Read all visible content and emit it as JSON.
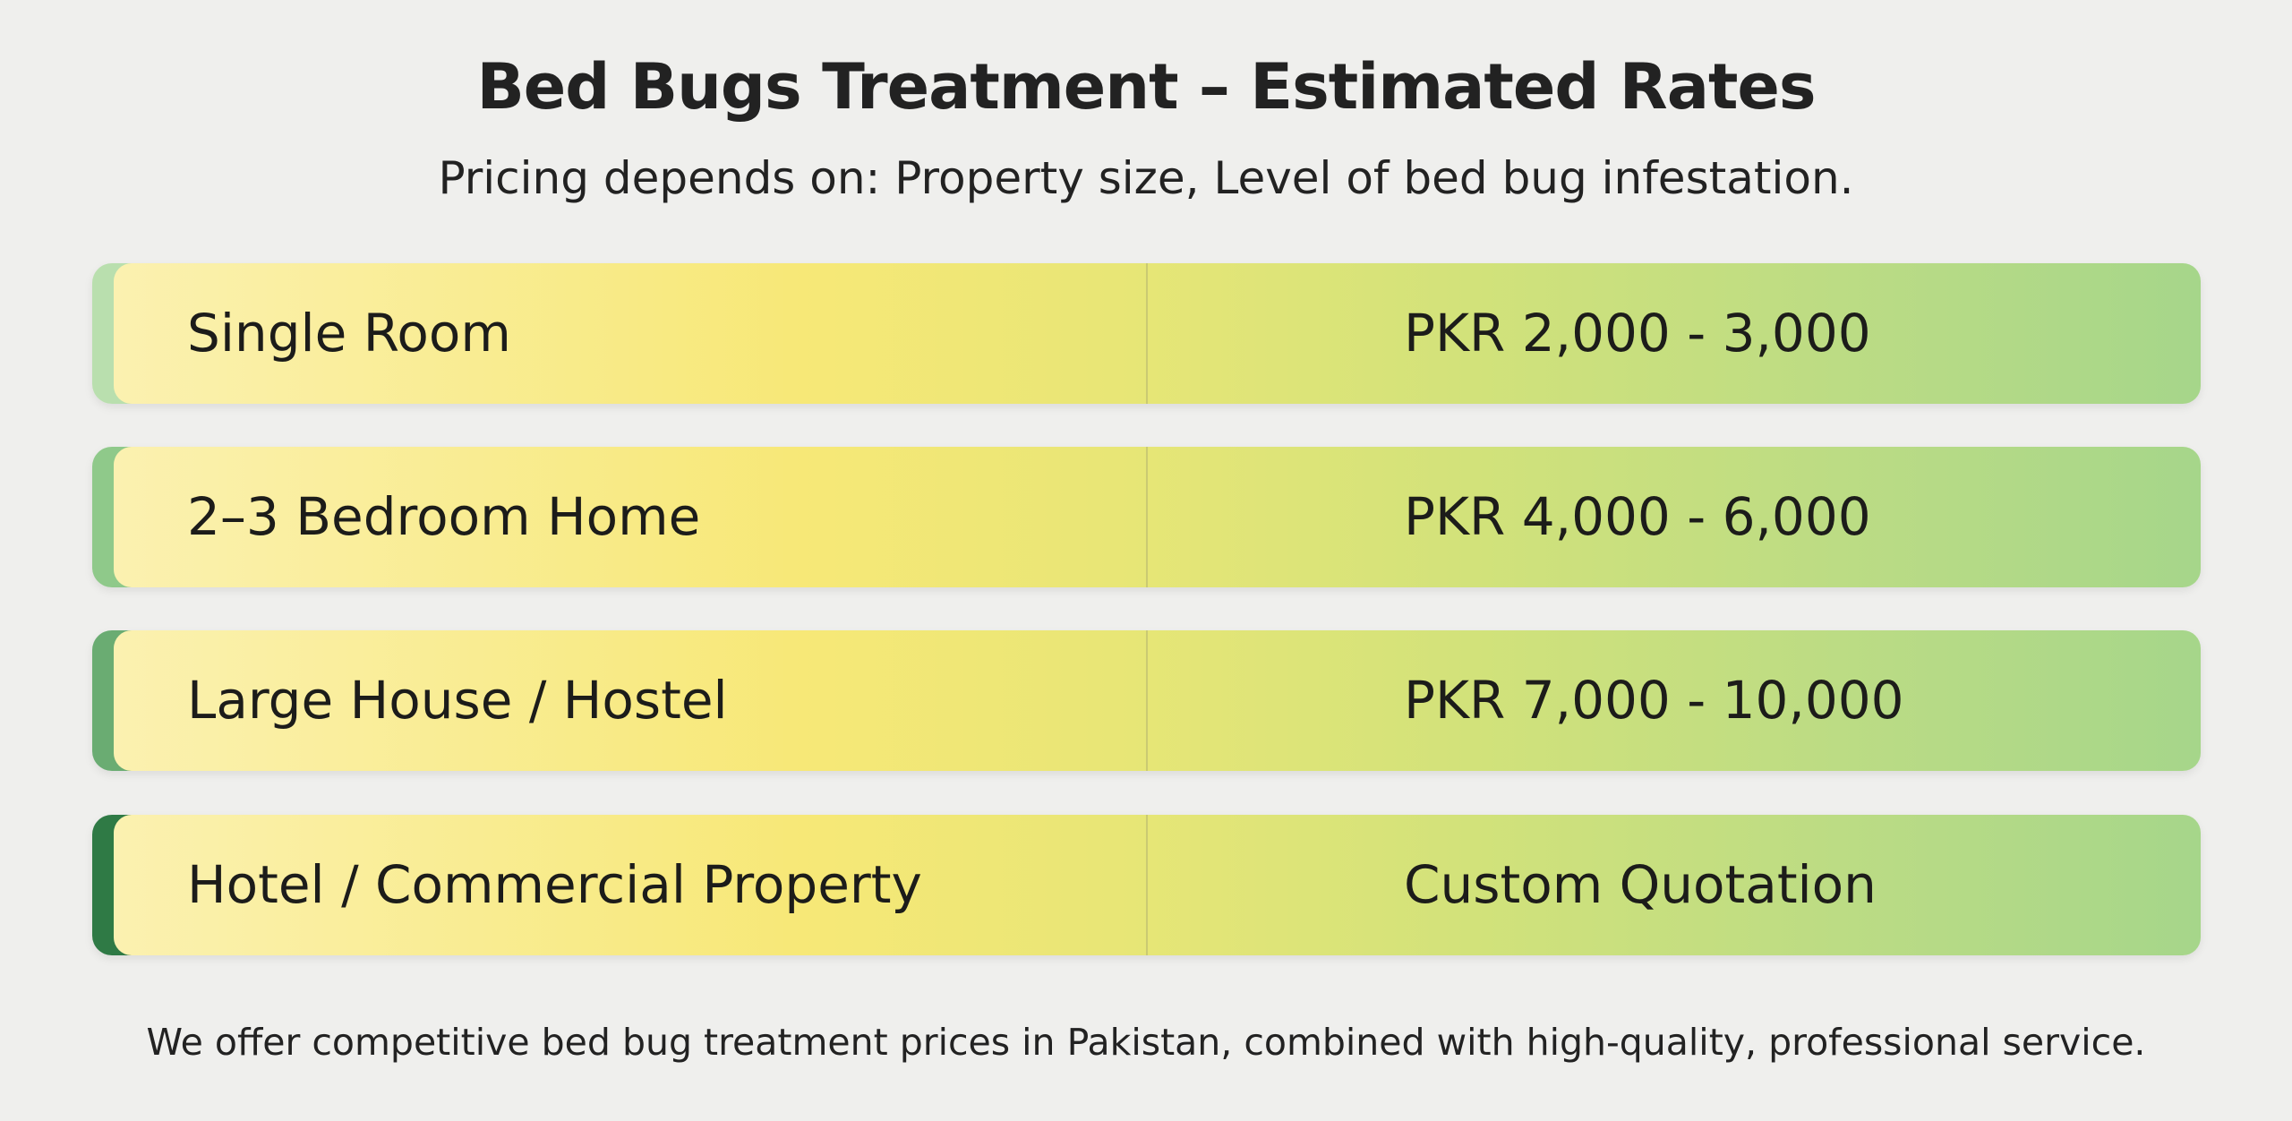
{
  "header": {
    "title": "Bed Bugs Treatment – Estimated Rates",
    "subtitle": "Pricing depends on: Property size, Level of bed bug infestation."
  },
  "rates": [
    {
      "label": "Single Room",
      "price": "PKR 2,000 - 3,000",
      "accent": "#b9dfae"
    },
    {
      "label": "2–3 Bedroom Home",
      "price": "PKR 4,000 - 6,000",
      "accent": "#8fc98a"
    },
    {
      "label": "Large House / Hostel",
      "price": "PKR 7,000 - 10,000",
      "accent": "#6aac72"
    },
    {
      "label": "Hotel / Commercial Property",
      "price": "Custom Quotation",
      "accent": "#2f7a45"
    }
  ],
  "footer": {
    "text": "We offer competitive bed bug treatment prices in Pakistan, combined with high-quality, professional service."
  }
}
